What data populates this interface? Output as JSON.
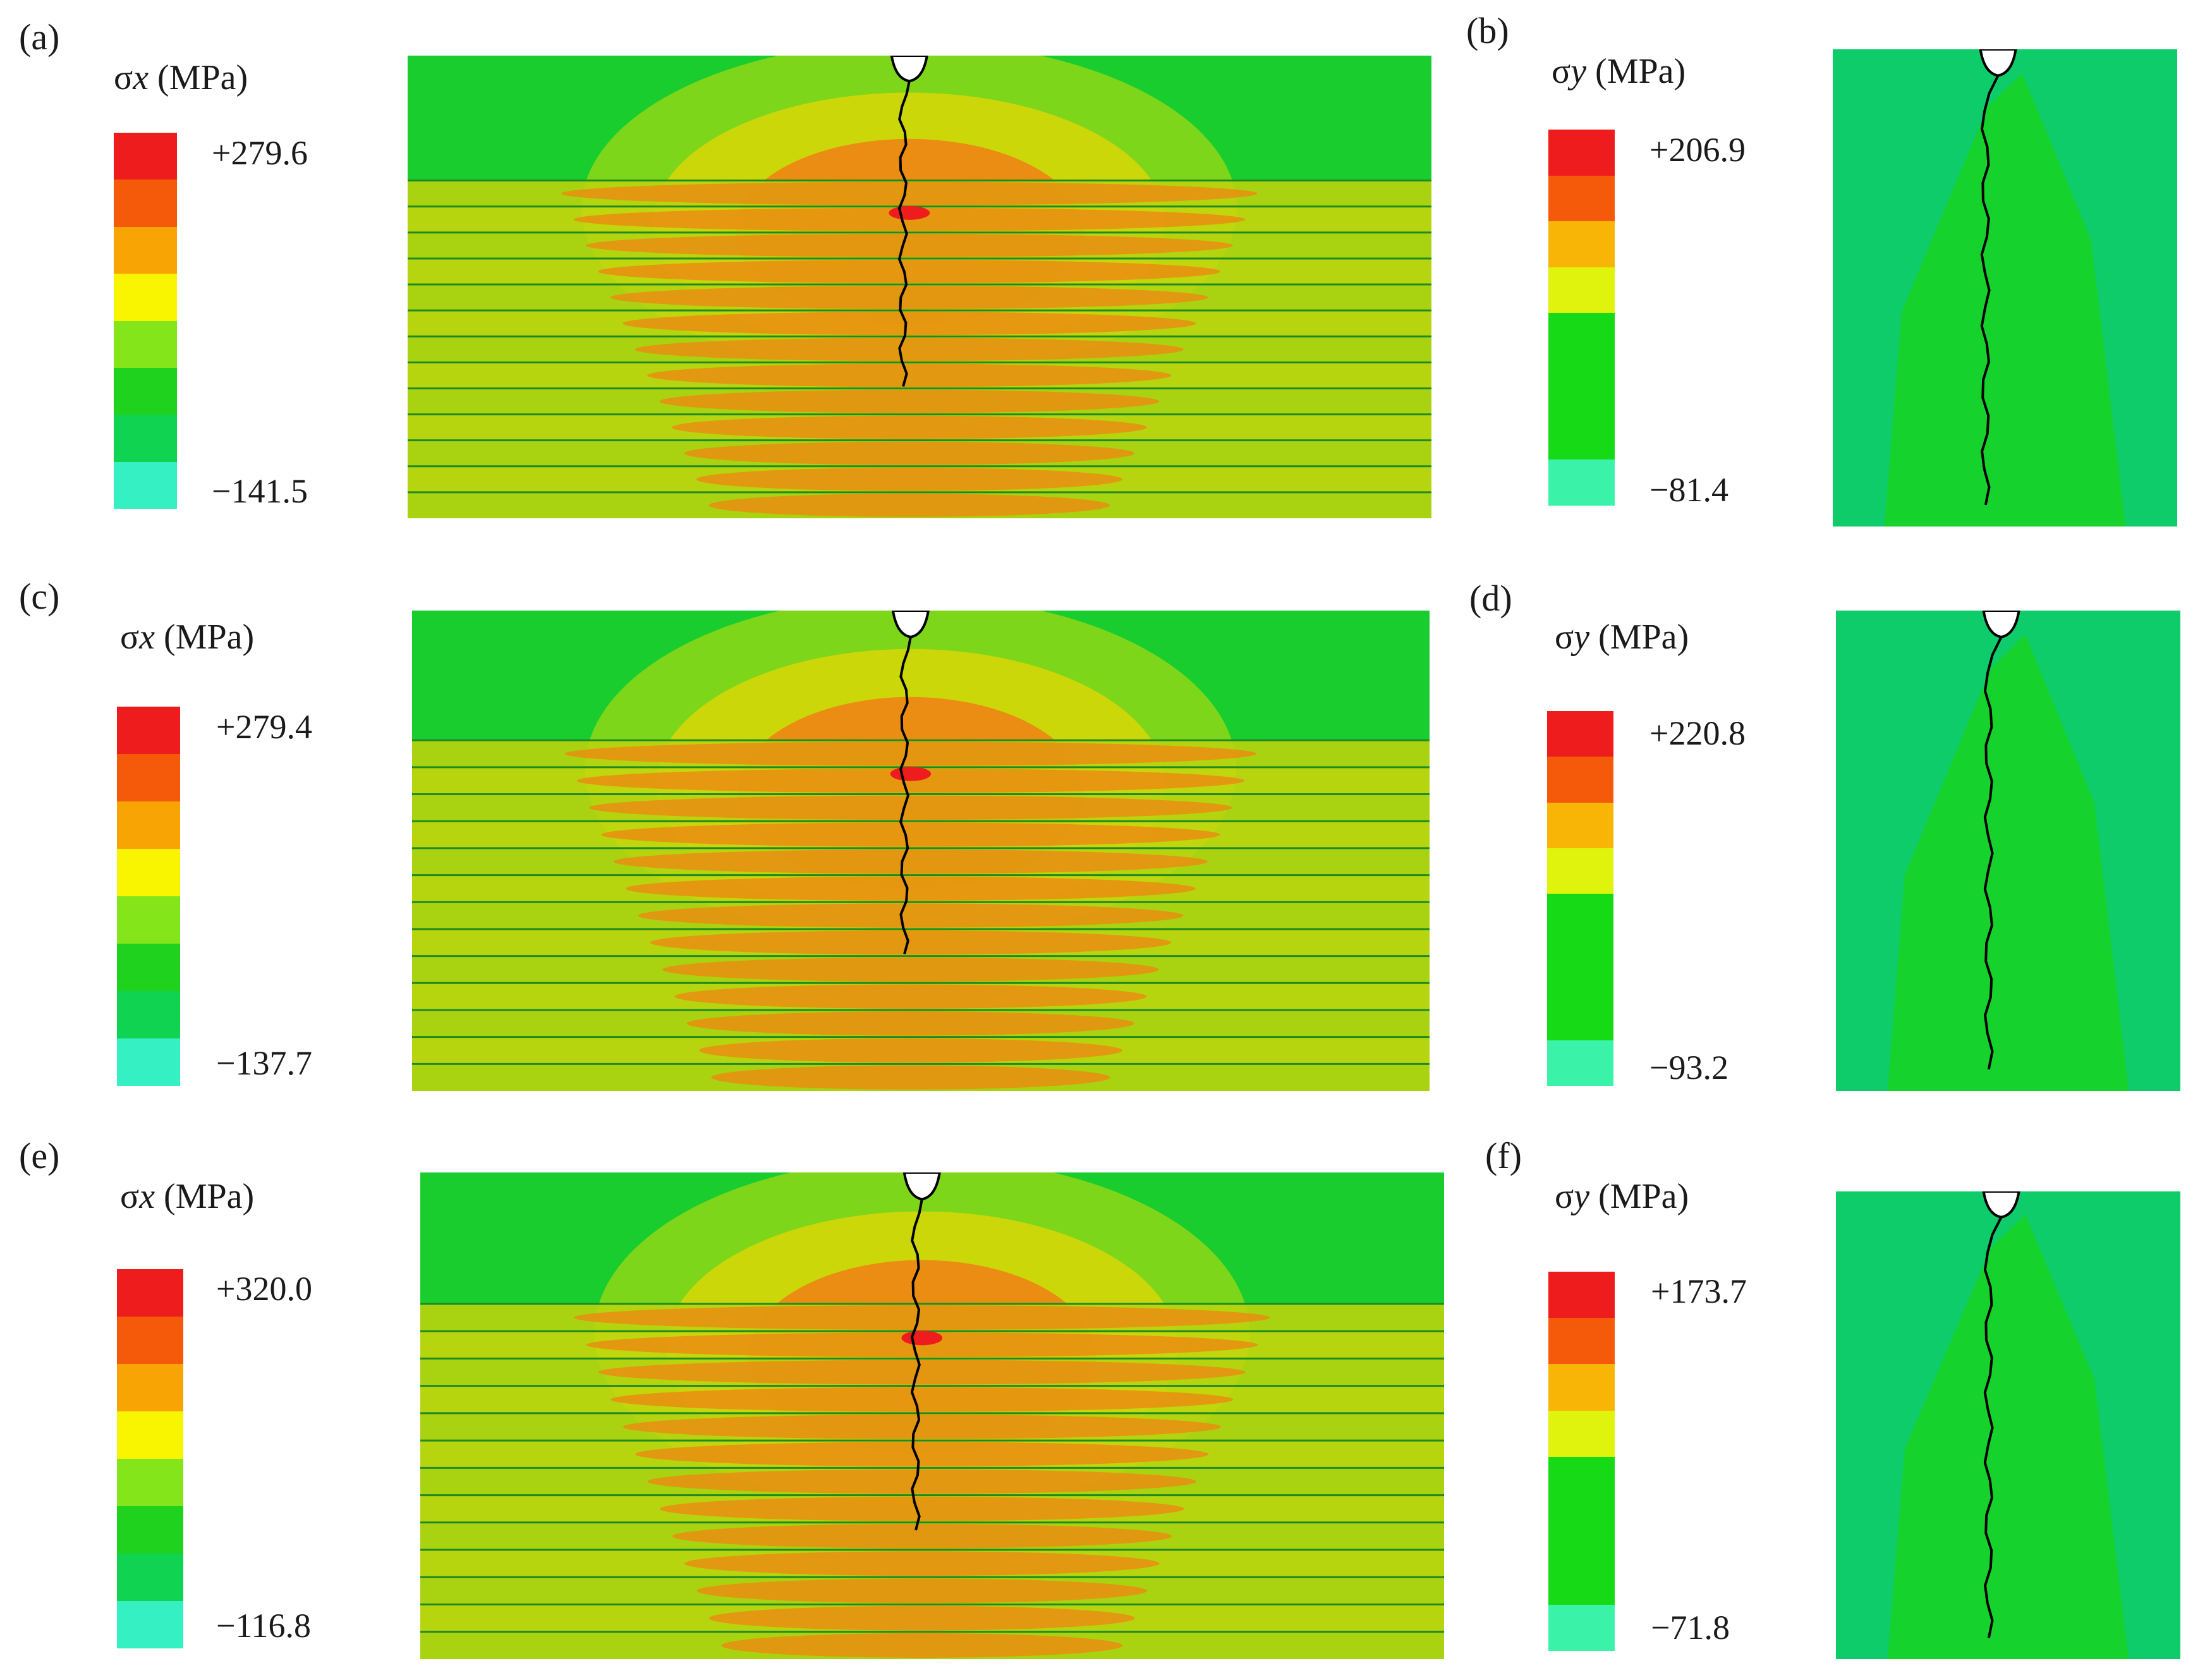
{
  "figure": {
    "panels": [
      {
        "letter": "(a)",
        "quantity": "σ",
        "subscript": "x",
        "unit": "(MPa)",
        "max": "+279.6",
        "min": "−141.5",
        "plot": "x"
      },
      {
        "letter": "(b)",
        "quantity": "σ",
        "subscript": "y",
        "unit": "(MPa)",
        "max": "+206.9",
        "min": "−81.4",
        "plot": "y"
      },
      {
        "letter": "(c)",
        "quantity": "σ",
        "subscript": "x",
        "unit": "(MPa)",
        "max": "+279.4",
        "min": "−137.7",
        "plot": "x"
      },
      {
        "letter": "(d)",
        "quantity": "σ",
        "subscript": "y",
        "unit": "(MPa)",
        "max": "+220.8",
        "min": "−93.2",
        "plot": "y"
      },
      {
        "letter": "(e)",
        "quantity": "σ",
        "subscript": "x",
        "unit": "(MPa)",
        "max": "+320.0",
        "min": "−116.8",
        "plot": "x"
      },
      {
        "letter": "(f)",
        "quantity": "σ",
        "subscript": "y",
        "unit": "(MPa)",
        "max": "+173.7",
        "min": "−71.8",
        "plot": "y"
      }
    ],
    "colors": {
      "sigma_x_scale": [
        "#ee1c1c",
        "#f45a0a",
        "#f9a405",
        "#f9f500",
        "#84e51a",
        "#1ed21e",
        "#10d352",
        "#35f0c3"
      ],
      "sigma_y_scale": [
        "#ee1c1c",
        "#f45a0a",
        "#f9b505",
        "#dff30d",
        "#16da16",
        "#16da16",
        "#3af3a8"
      ],
      "background_green": "#19cd2f",
      "teal": "#0fcc6b",
      "yellow_band": "#ccd70a",
      "orange_band": "#ea8d12",
      "crack": "#000000"
    }
  }
}
